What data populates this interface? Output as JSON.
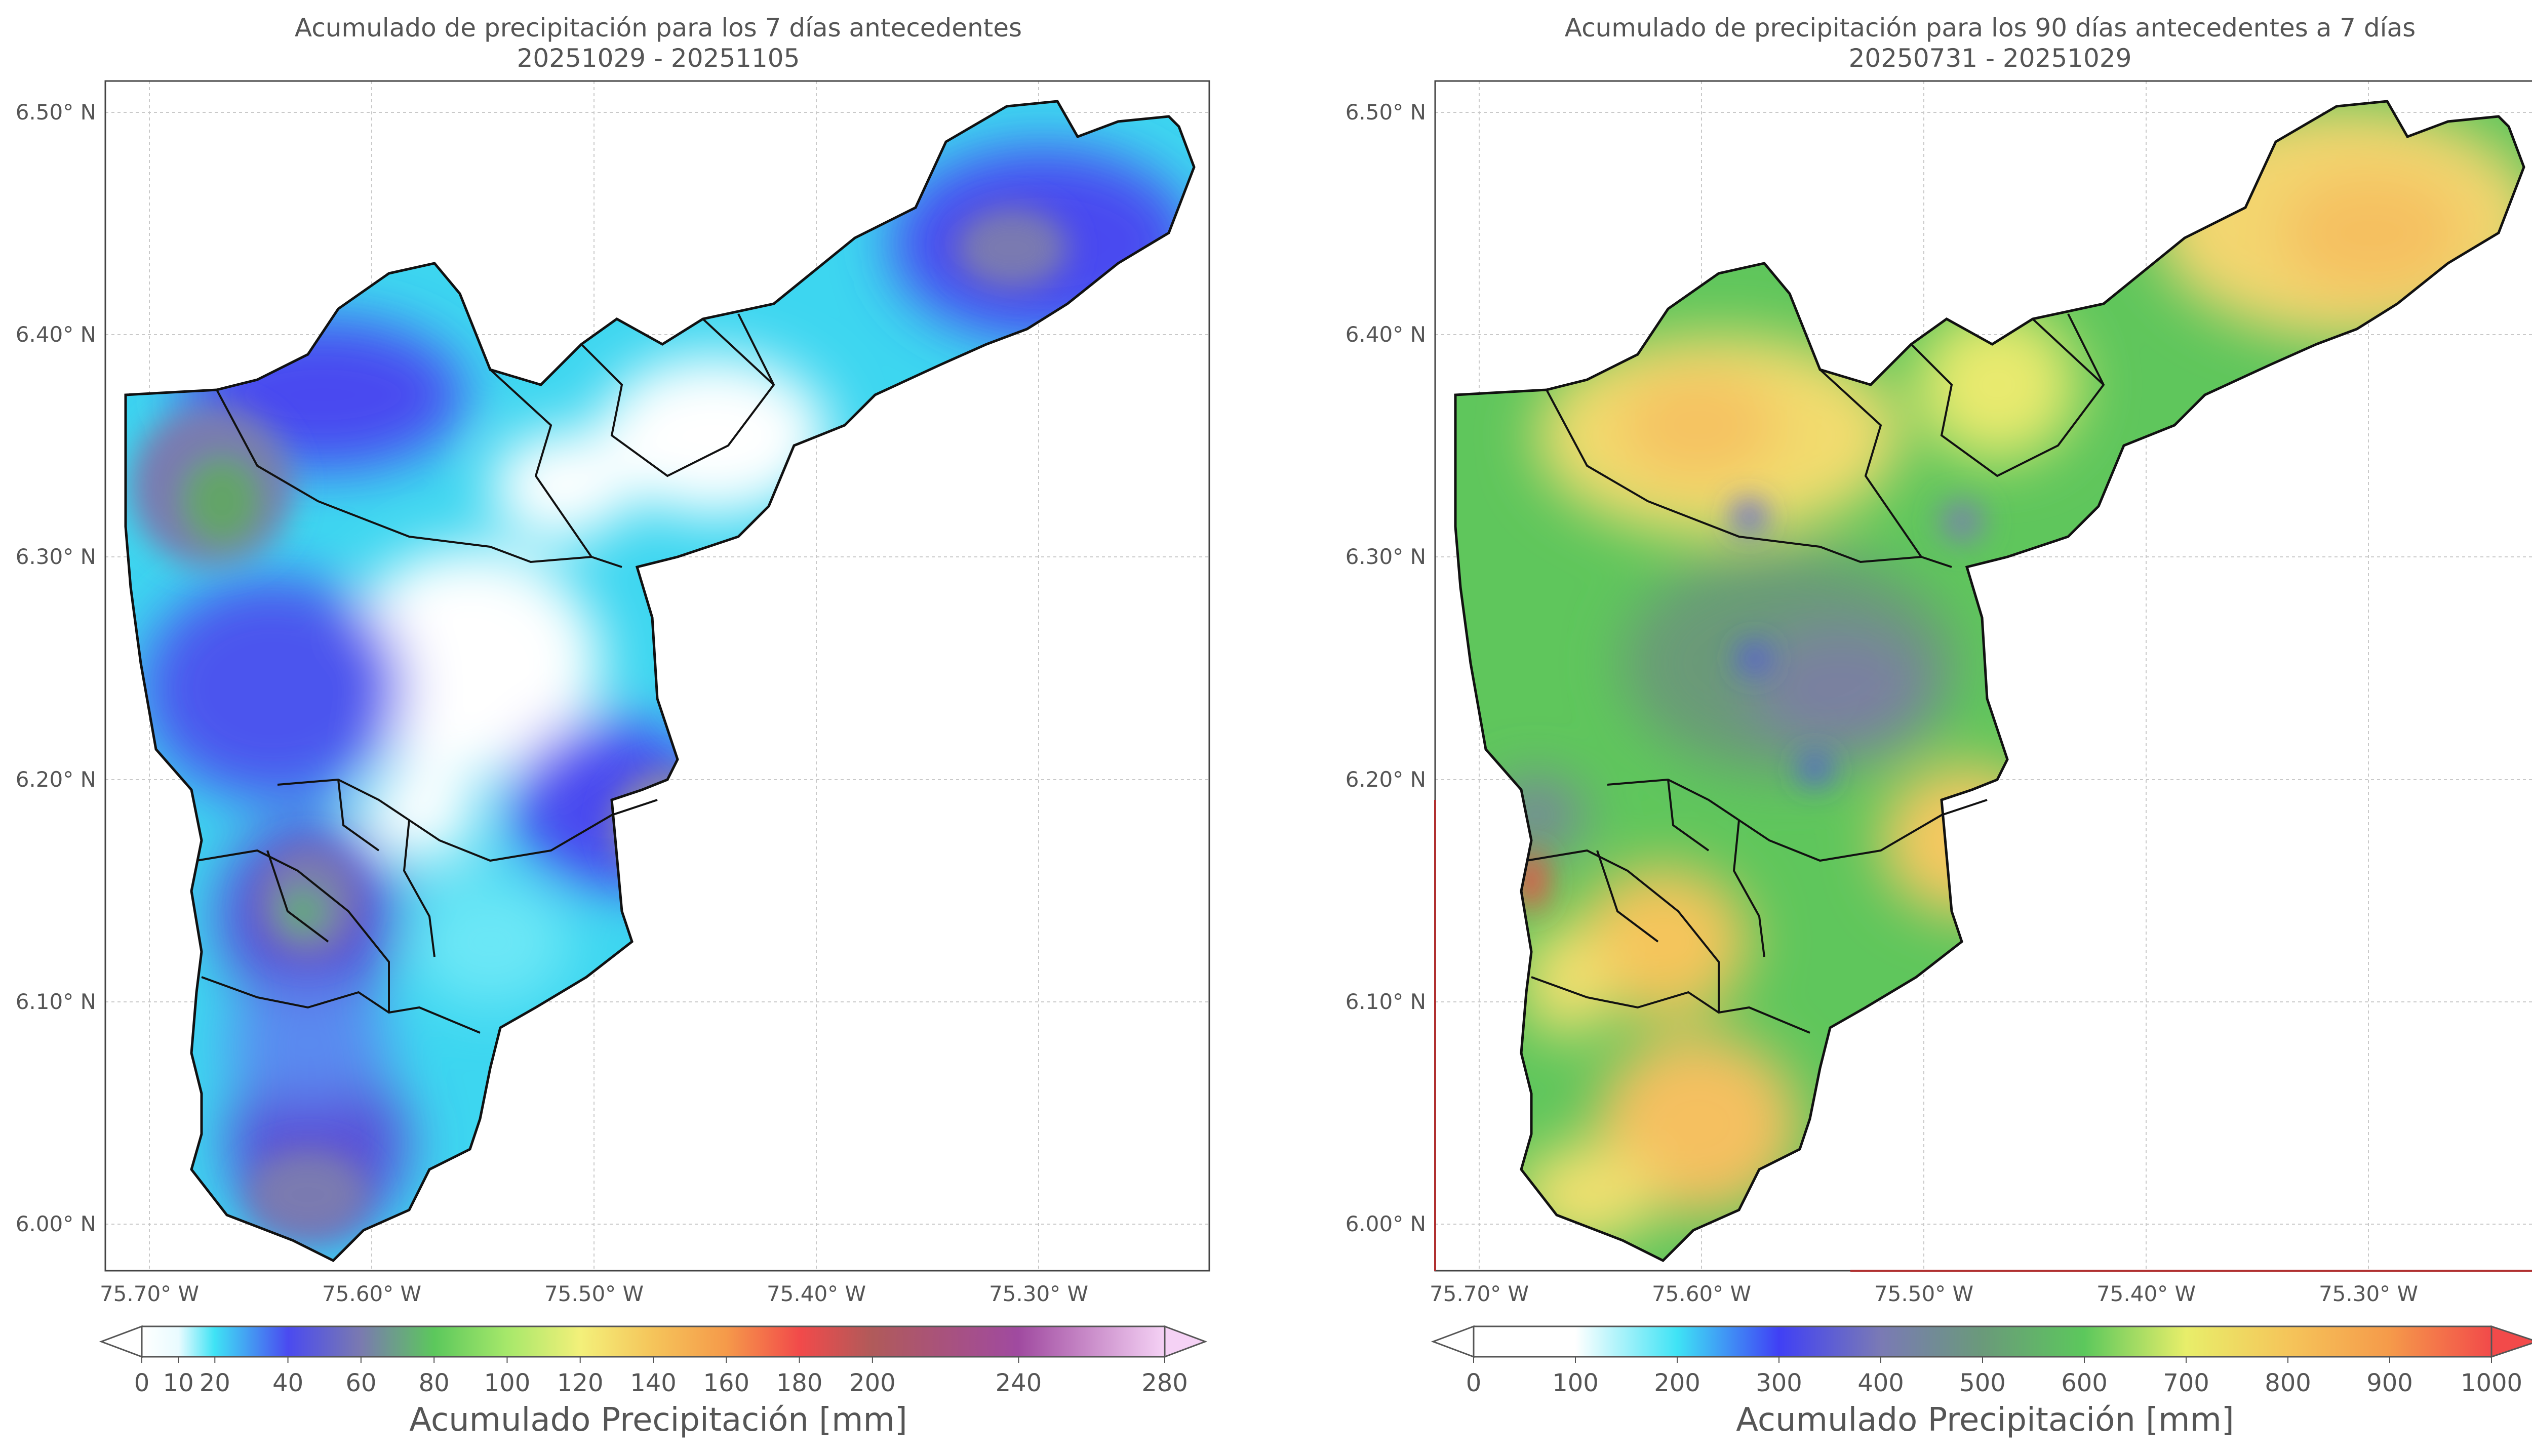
{
  "panels": [
    {
      "title_line1": "Acumulado de precipitación para los 7 días antecedentes",
      "title_line2": "20251029 - 20251105",
      "lat_labels": [
        "6.50° N",
        "6.40° N",
        "6.30° N",
        "6.20° N",
        "6.10° N",
        "6.00° N"
      ],
      "lon_labels": [
        "75.70° W",
        "75.60° W",
        "75.50° W",
        "75.40° W",
        "75.30° W"
      ],
      "colorbar": {
        "label": "Acumulado Precipitación [mm]",
        "ticks": [
          "0",
          "10",
          "20",
          "40",
          "60",
          "80",
          "100",
          "120",
          "140",
          "160",
          "180",
          "200",
          "240",
          "280"
        ],
        "tick_values": [
          0,
          10,
          20,
          40,
          60,
          80,
          100,
          120,
          140,
          160,
          180,
          200,
          240,
          280
        ],
        "stops": [
          {
            "v": 0,
            "c": "#ffffff"
          },
          {
            "v": 10,
            "c": "#e9fbff"
          },
          {
            "v": 20,
            "c": "#3fe3f5"
          },
          {
            "v": 40,
            "c": "#4a4af0"
          },
          {
            "v": 60,
            "c": "#7a7ab0"
          },
          {
            "v": 80,
            "c": "#5cc85c"
          },
          {
            "v": 100,
            "c": "#a6e86a"
          },
          {
            "v": 120,
            "c": "#f3f07a"
          },
          {
            "v": 140,
            "c": "#f5c45a"
          },
          {
            "v": 160,
            "c": "#f59a4a"
          },
          {
            "v": 180,
            "c": "#f24a4a"
          },
          {
            "v": 200,
            "c": "#b05a5a"
          },
          {
            "v": 240,
            "c": "#a04aa0"
          },
          {
            "v": 280,
            "c": "#f5d2f5"
          }
        ]
      }
    },
    {
      "title_line1": "Acumulado de precipitación para los 90 días antecedentes a 7 días",
      "title_line2": "20250731 - 20251029",
      "lat_labels": [
        "6.50° N",
        "6.40° N",
        "6.30° N",
        "6.20° N",
        "6.10° N",
        "6.00° N"
      ],
      "lon_labels": [
        "75.70° W",
        "75.60° W",
        "75.50° W",
        "75.40° W",
        "75.30° W"
      ],
      "colorbar": {
        "label": "Acumulado Precipitación [mm]",
        "ticks": [
          "0",
          "100",
          "200",
          "300",
          "400",
          "500",
          "600",
          "700",
          "800",
          "900",
          "1000"
        ],
        "tick_values": [
          0,
          100,
          200,
          300,
          400,
          500,
          600,
          700,
          800,
          900,
          1000
        ],
        "stops": [
          {
            "v": 0,
            "c": "#ffffff"
          },
          {
            "v": 100,
            "c": "#ffffff"
          },
          {
            "v": 200,
            "c": "#3fe3f5"
          },
          {
            "v": 300,
            "c": "#4040f5"
          },
          {
            "v": 400,
            "c": "#7a7ab5"
          },
          {
            "v": 500,
            "c": "#6a9a7a"
          },
          {
            "v": 600,
            "c": "#5cc85c"
          },
          {
            "v": 700,
            "c": "#e8ee6a"
          },
          {
            "v": 800,
            "c": "#f5c55a"
          },
          {
            "v": 900,
            "c": "#f59a4a"
          },
          {
            "v": 1000,
            "c": "#f24a4a"
          }
        ]
      }
    }
  ]
}
